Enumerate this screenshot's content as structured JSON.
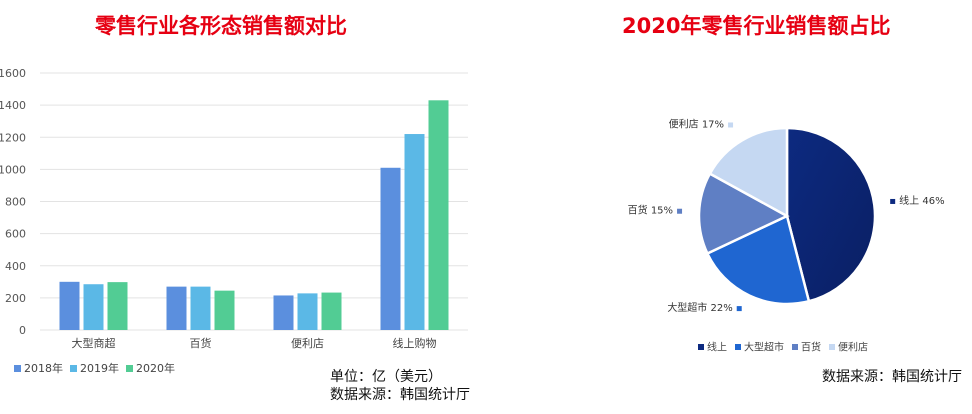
{
  "bar_title": "零售行业各形态销售额对比",
  "pie_title": "2020年零售行业销售额占比",
  "unit_note": "单位：亿（美元）",
  "source_left": "数据来源：韩国统计厅",
  "source_right": "数据来源：韩国统计厅",
  "chart_data": [
    {
      "type": "bar",
      "title": "零售行业各形态销售额对比",
      "categories": [
        "大型商超",
        "百货",
        "便利店",
        "线上购物"
      ],
      "series": [
        {
          "name": "2018年",
          "color": "#5b8fde",
          "values": [
            300,
            270,
            215,
            1010
          ]
        },
        {
          "name": "2019年",
          "color": "#5bb8e6",
          "values": [
            285,
            270,
            228,
            1220
          ]
        },
        {
          "name": "2020年",
          "color": "#52cc94",
          "values": [
            298,
            245,
            233,
            1430
          ]
        }
      ],
      "yticks": [
        0,
        200,
        400,
        600,
        800,
        1000,
        1200,
        1400,
        1600
      ],
      "ylim": [
        0,
        1600
      ],
      "grid": true,
      "legend": "bottom-left"
    },
    {
      "type": "pie",
      "title": "2020年零售行业销售额占比",
      "slices": [
        {
          "label": "线上",
          "value": 46,
          "text": "线上 46%",
          "color": "#0d2a80"
        },
        {
          "label": "大型超市",
          "value": 22,
          "text": "大型超市 22%",
          "color": "#1f66d1"
        },
        {
          "label": "百货",
          "value": 15,
          "text": "百货 15%",
          "color": "#5f7fc4"
        },
        {
          "label": "便利店",
          "value": 17,
          "text": "便利店 17%",
          "color": "#c5d8f2"
        }
      ],
      "legend": "bottom"
    }
  ]
}
